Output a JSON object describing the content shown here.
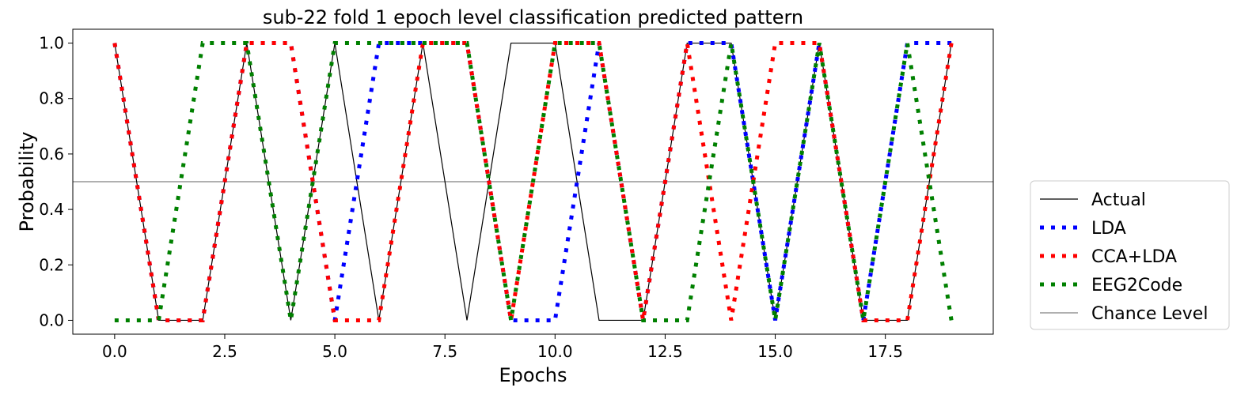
{
  "chart_data": {
    "type": "line",
    "title": "sub-22 fold 1 epoch level classification predicted pattern",
    "xlabel": "Epochs",
    "ylabel": "Probability",
    "xlim": [
      -0.95,
      19.95
    ],
    "ylim": [
      -0.05,
      1.05
    ],
    "x_ticks": [
      0.0,
      2.5,
      5.0,
      7.5,
      10.0,
      12.5,
      15.0,
      17.5
    ],
    "x_tick_labels": [
      "0.0",
      "2.5",
      "5.0",
      "7.5",
      "10.0",
      "12.5",
      "15.0",
      "17.5"
    ],
    "y_ticks": [
      0.0,
      0.2,
      0.4,
      0.6,
      0.8,
      1.0
    ],
    "y_tick_labels": [
      "0.0",
      "0.2",
      "0.4",
      "0.6",
      "0.8",
      "1.0"
    ],
    "grid": false,
    "legend_position": "outside-right-bottom",
    "series": [
      {
        "name": "Actual",
        "style": "solid",
        "color": "#000000",
        "x": [
          0,
          1,
          2,
          3,
          4,
          5,
          6,
          7,
          8,
          9,
          10,
          11,
          12,
          13,
          14,
          15,
          16,
          17,
          18,
          19
        ],
        "values": [
          1,
          0,
          0,
          1,
          0,
          1,
          0,
          1,
          0,
          1,
          1,
          0,
          0,
          1,
          1,
          0,
          1,
          0,
          0,
          1
        ]
      },
      {
        "name": "LDA",
        "style": "dotted",
        "color": "#0000ff",
        "x": [
          0,
          1,
          2,
          3,
          4,
          5,
          6,
          7,
          8,
          9,
          10,
          11,
          12,
          13,
          14,
          15,
          16,
          17,
          18,
          19
        ],
        "values": [
          1,
          0,
          0,
          1,
          1,
          0,
          1,
          1,
          1,
          0,
          0,
          1,
          0,
          1,
          1,
          0,
          1,
          0,
          1,
          1
        ]
      },
      {
        "name": "CCA+LDA",
        "style": "dotted",
        "color": "#ff0000",
        "x": [
          0,
          1,
          2,
          3,
          4,
          5,
          6,
          7,
          8,
          9,
          10,
          11,
          12,
          13,
          14,
          15,
          16,
          17,
          18,
          19
        ],
        "values": [
          1,
          0,
          0,
          1,
          1,
          0,
          0,
          1,
          1,
          0,
          1,
          1,
          0,
          1,
          0,
          1,
          1,
          0,
          0,
          1
        ]
      },
      {
        "name": "EEG2Code",
        "style": "dotted",
        "color": "#008000",
        "x": [
          0,
          1,
          2,
          3,
          4,
          5,
          6,
          7,
          8,
          9,
          10,
          11,
          12,
          13,
          14,
          15,
          16,
          17,
          18,
          19
        ],
        "values": [
          0,
          0,
          1,
          1,
          0,
          1,
          1,
          1,
          1,
          0,
          1,
          1,
          0,
          0,
          1,
          0,
          1,
          0,
          1,
          0
        ]
      },
      {
        "name": "Chance Level",
        "style": "solid",
        "color": "#808080",
        "x": [
          -0.95,
          19.95
        ],
        "values": [
          0.5,
          0.5
        ]
      }
    ]
  }
}
